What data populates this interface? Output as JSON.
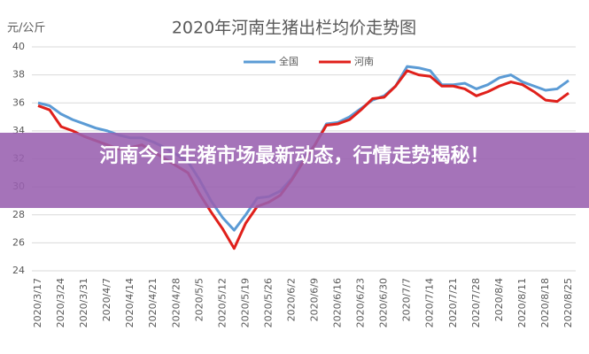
{
  "chart_data": {
    "type": "line",
    "title": "2020年河南生猪出栏均价走势图",
    "ylabel": "元/公斤",
    "annotation": "河南今日生猪市场最新动态，行情走势揭秘！",
    "categories": [
      "2020/3/17",
      null,
      "2020/3/24",
      null,
      "2020/3/31",
      null,
      "2020/4/7",
      null,
      "2020/4/14",
      null,
      "2020/4/21",
      null,
      "2020/4/28",
      null,
      "2020/5/5",
      null,
      "2020/5/12",
      null,
      "2020/5/19",
      null,
      "2020/5/26",
      null,
      "2020/6/2",
      null,
      "2020/6/9",
      null,
      "2020/6/16",
      null,
      "2020/6/23",
      null,
      "2020/6/30",
      null,
      "2020/7/7",
      null,
      "2020/7/14",
      null,
      "2020/7/21",
      null,
      "2020/7/28",
      null,
      "2020/8/4",
      null,
      "2020/8/11",
      null,
      "2020/8/18",
      null,
      "2020/8/25"
    ],
    "series": [
      {
        "name": "全国",
        "color": "#5b9bd5",
        "values": [
          36.0,
          35.8,
          35.2,
          34.8,
          34.5,
          34.2,
          34.0,
          33.7,
          33.5,
          33.5,
          33.2,
          32.8,
          32.3,
          31.8,
          30.5,
          29.0,
          27.8,
          26.9,
          28.0,
          29.2,
          29.3,
          29.7,
          30.6,
          32.0,
          33.0,
          34.5,
          34.6,
          35.0,
          35.6,
          36.2,
          36.5,
          37.2,
          38.6,
          38.5,
          38.3,
          37.3,
          37.3,
          37.4,
          37.0,
          37.3,
          37.8,
          38.0,
          37.5,
          37.2,
          36.9,
          37.0,
          37.6
        ]
      },
      {
        "name": "河南",
        "color": "#e0201b",
        "values": [
          35.8,
          35.5,
          34.3,
          34.0,
          33.6,
          33.3,
          33.0,
          32.7,
          32.8,
          33.0,
          32.5,
          32.0,
          31.5,
          31.0,
          29.5,
          28.2,
          27.0,
          25.6,
          27.4,
          28.6,
          28.9,
          29.4,
          30.5,
          31.8,
          33.0,
          34.4,
          34.5,
          34.8,
          35.5,
          36.3,
          36.4,
          37.2,
          38.3,
          38.0,
          37.9,
          37.2,
          37.2,
          37.0,
          36.5,
          36.8,
          37.2,
          37.5,
          37.3,
          36.8,
          36.2,
          36.1,
          36.7
        ]
      }
    ],
    "ylim": [
      24,
      40
    ],
    "yticks": [
      24,
      26,
      28,
      30,
      32,
      34,
      36,
      38,
      40
    ],
    "grid": true
  }
}
